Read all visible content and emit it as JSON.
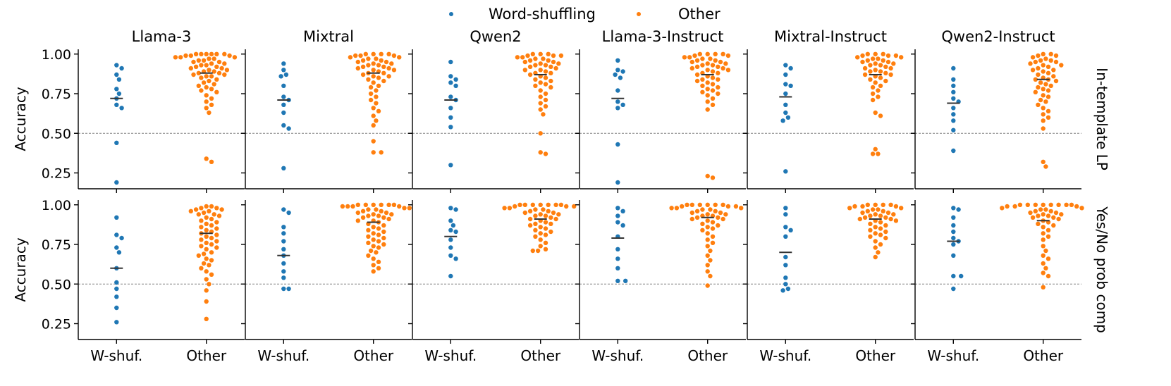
{
  "chart_data": {
    "type": "scatter",
    "subtype": "swarm",
    "legend": {
      "placement": "top-center",
      "entries": [
        {
          "name": "Word-shuffling",
          "color": "#1f77b4"
        },
        {
          "name": "Other",
          "color": "#ff7f0e"
        }
      ]
    },
    "categories": [
      "W-shuf.",
      "Other"
    ],
    "ylabel": "Accuracy",
    "ylim": [
      0.15,
      1.03
    ],
    "yticks": [
      "0.25",
      "0.50",
      "0.75",
      "1.00"
    ],
    "ytick_values": [
      0.25,
      0.5,
      0.75,
      1.0
    ],
    "reference_line": 0.5,
    "columns": [
      "Llama-3",
      "Mixtral",
      "Qwen2",
      "Llama-3-Instruct",
      "Mixtral-Instruct",
      "Qwen2-Instruct"
    ],
    "rows": [
      "In-template LP",
      "Yes/No prob comp"
    ],
    "panels": [
      {
        "row": 0,
        "col": 0,
        "median": [
          0.72,
          0.88
        ],
        "wshuf": [
          0.93,
          0.91,
          0.87,
          0.84,
          0.78,
          0.75,
          0.72,
          0.68,
          0.66,
          0.44,
          0.19
        ],
        "other": [
          1.0,
          1.0,
          1.0,
          1.0,
          1.0,
          1.0,
          0.99,
          0.99,
          0.99,
          0.98,
          0.98,
          0.98,
          0.97,
          0.97,
          0.96,
          0.96,
          0.95,
          0.95,
          0.94,
          0.94,
          0.93,
          0.93,
          0.92,
          0.92,
          0.91,
          0.91,
          0.9,
          0.9,
          0.89,
          0.89,
          0.88,
          0.88,
          0.87,
          0.87,
          0.86,
          0.86,
          0.85,
          0.84,
          0.83,
          0.82,
          0.81,
          0.8,
          0.79,
          0.78,
          0.77,
          0.76,
          0.74,
          0.72,
          0.7,
          0.68,
          0.66,
          0.63,
          0.34,
          0.32
        ]
      },
      {
        "row": 0,
        "col": 1,
        "median": [
          0.71,
          0.88
        ],
        "wshuf": [
          0.94,
          0.9,
          0.87,
          0.86,
          0.8,
          0.73,
          0.71,
          0.68,
          0.63,
          0.55,
          0.53,
          0.28
        ],
        "other": [
          1.0,
          1.0,
          1.0,
          1.0,
          0.99,
          0.99,
          0.99,
          0.98,
          0.98,
          0.97,
          0.97,
          0.96,
          0.96,
          0.95,
          0.95,
          0.94,
          0.94,
          0.93,
          0.93,
          0.92,
          0.92,
          0.91,
          0.91,
          0.9,
          0.9,
          0.89,
          0.88,
          0.88,
          0.87,
          0.86,
          0.86,
          0.85,
          0.84,
          0.83,
          0.82,
          0.8,
          0.79,
          0.77,
          0.75,
          0.73,
          0.71,
          0.69,
          0.66,
          0.64,
          0.61,
          0.58,
          0.55,
          0.45,
          0.38,
          0.38
        ]
      },
      {
        "row": 0,
        "col": 2,
        "median": [
          0.71,
          0.87
        ],
        "wshuf": [
          0.95,
          0.86,
          0.84,
          0.82,
          0.8,
          0.73,
          0.71,
          0.66,
          0.6,
          0.54,
          0.3
        ],
        "other": [
          1.0,
          1.0,
          1.0,
          0.99,
          0.99,
          0.99,
          0.98,
          0.98,
          0.97,
          0.97,
          0.96,
          0.96,
          0.95,
          0.95,
          0.94,
          0.94,
          0.93,
          0.93,
          0.92,
          0.92,
          0.91,
          0.9,
          0.9,
          0.89,
          0.88,
          0.88,
          0.87,
          0.86,
          0.85,
          0.84,
          0.83,
          0.82,
          0.81,
          0.8,
          0.79,
          0.77,
          0.75,
          0.73,
          0.71,
          0.69,
          0.67,
          0.65,
          0.62,
          0.5,
          0.38,
          0.37
        ]
      },
      {
        "row": 0,
        "col": 3,
        "median": [
          0.72,
          0.87
        ],
        "wshuf": [
          0.96,
          0.9,
          0.89,
          0.87,
          0.85,
          0.77,
          0.7,
          0.68,
          0.66,
          0.43,
          0.19
        ],
        "other": [
          1.0,
          1.0,
          1.0,
          1.0,
          0.99,
          0.99,
          0.98,
          0.98,
          0.97,
          0.97,
          0.96,
          0.96,
          0.95,
          0.95,
          0.94,
          0.94,
          0.93,
          0.93,
          0.92,
          0.92,
          0.91,
          0.91,
          0.9,
          0.9,
          0.89,
          0.88,
          0.88,
          0.87,
          0.86,
          0.85,
          0.84,
          0.84,
          0.83,
          0.82,
          0.81,
          0.8,
          0.79,
          0.78,
          0.77,
          0.76,
          0.75,
          0.74,
          0.72,
          0.7,
          0.68,
          0.65,
          0.23,
          0.22
        ]
      },
      {
        "row": 0,
        "col": 4,
        "median": [
          0.73,
          0.87
        ],
        "wshuf": [
          0.93,
          0.91,
          0.87,
          0.81,
          0.8,
          0.75,
          0.68,
          0.63,
          0.6,
          0.58,
          0.26
        ],
        "other": [
          1.0,
          1.0,
          1.0,
          0.99,
          0.99,
          0.99,
          0.98,
          0.98,
          0.97,
          0.97,
          0.96,
          0.96,
          0.95,
          0.95,
          0.94,
          0.94,
          0.93,
          0.93,
          0.92,
          0.91,
          0.91,
          0.9,
          0.89,
          0.89,
          0.88,
          0.87,
          0.87,
          0.86,
          0.85,
          0.84,
          0.83,
          0.82,
          0.8,
          0.79,
          0.77,
          0.75,
          0.73,
          0.71,
          0.63,
          0.61,
          0.4,
          0.37,
          0.37
        ]
      },
      {
        "row": 0,
        "col": 5,
        "median": [
          0.69,
          0.84
        ],
        "wshuf": [
          0.91,
          0.84,
          0.8,
          0.76,
          0.72,
          0.7,
          0.66,
          0.62,
          0.58,
          0.52,
          0.39
        ],
        "other": [
          1.0,
          1.0,
          0.99,
          0.99,
          0.98,
          0.97,
          0.96,
          0.96,
          0.95,
          0.95,
          0.94,
          0.93,
          0.93,
          0.92,
          0.91,
          0.9,
          0.9,
          0.89,
          0.88,
          0.87,
          0.86,
          0.85,
          0.84,
          0.84,
          0.83,
          0.82,
          0.81,
          0.8,
          0.79,
          0.78,
          0.77,
          0.76,
          0.74,
          0.73,
          0.71,
          0.7,
          0.68,
          0.66,
          0.64,
          0.62,
          0.6,
          0.58,
          0.53,
          0.32,
          0.29
        ]
      },
      {
        "row": 1,
        "col": 0,
        "median": [
          0.6,
          0.82
        ],
        "wshuf": [
          0.92,
          0.81,
          0.79,
          0.73,
          0.7,
          0.6,
          0.51,
          0.47,
          0.42,
          0.35,
          0.26
        ],
        "other": [
          0.99,
          0.99,
          0.98,
          0.98,
          0.97,
          0.97,
          0.96,
          0.96,
          0.95,
          0.94,
          0.94,
          0.93,
          0.92,
          0.91,
          0.9,
          0.89,
          0.88,
          0.87,
          0.86,
          0.85,
          0.84,
          0.83,
          0.82,
          0.81,
          0.8,
          0.79,
          0.78,
          0.77,
          0.76,
          0.75,
          0.74,
          0.73,
          0.72,
          0.7,
          0.69,
          0.68,
          0.66,
          0.65,
          0.63,
          0.62,
          0.6,
          0.58,
          0.56,
          0.53,
          0.5,
          0.46,
          0.39,
          0.28
        ]
      },
      {
        "row": 1,
        "col": 1,
        "median": [
          0.68,
          0.89
        ],
        "wshuf": [
          0.97,
          0.95,
          0.86,
          0.82,
          0.77,
          0.72,
          0.68,
          0.63,
          0.58,
          0.54,
          0.47,
          0.47
        ],
        "other": [
          1.0,
          1.0,
          1.0,
          1.0,
          1.0,
          1.0,
          0.99,
          0.99,
          0.99,
          0.99,
          0.98,
          0.98,
          0.97,
          0.97,
          0.96,
          0.96,
          0.95,
          0.95,
          0.94,
          0.94,
          0.93,
          0.93,
          0.92,
          0.92,
          0.91,
          0.9,
          0.9,
          0.89,
          0.88,
          0.87,
          0.86,
          0.85,
          0.84,
          0.83,
          0.82,
          0.81,
          0.8,
          0.79,
          0.78,
          0.77,
          0.76,
          0.75,
          0.74,
          0.73,
          0.71,
          0.7,
          0.68,
          0.66,
          0.64,
          0.62,
          0.6,
          0.58
        ]
      },
      {
        "row": 1,
        "col": 2,
        "median": [
          0.8,
          0.91
        ],
        "wshuf": [
          0.98,
          0.97,
          0.9,
          0.87,
          0.84,
          0.83,
          0.78,
          0.73,
          0.68,
          0.66,
          0.55
        ],
        "other": [
          1.0,
          1.0,
          1.0,
          1.0,
          1.0,
          1.0,
          1.0,
          0.99,
          0.99,
          0.99,
          0.98,
          0.98,
          0.97,
          0.97,
          0.96,
          0.96,
          0.95,
          0.95,
          0.94,
          0.94,
          0.93,
          0.93,
          0.92,
          0.91,
          0.91,
          0.9,
          0.89,
          0.88,
          0.88,
          0.87,
          0.86,
          0.85,
          0.84,
          0.83,
          0.82,
          0.81,
          0.8,
          0.78,
          0.76,
          0.74,
          0.72,
          0.71,
          0.71
        ]
      },
      {
        "row": 1,
        "col": 3,
        "median": [
          0.79,
          0.92
        ],
        "wshuf": [
          0.98,
          0.96,
          0.93,
          0.89,
          0.87,
          0.8,
          0.72,
          0.66,
          0.6,
          0.52,
          0.52
        ],
        "other": [
          1.0,
          1.0,
          1.0,
          1.0,
          1.0,
          1.0,
          0.99,
          0.99,
          0.99,
          0.98,
          0.98,
          0.98,
          0.97,
          0.97,
          0.96,
          0.96,
          0.95,
          0.95,
          0.94,
          0.94,
          0.93,
          0.93,
          0.92,
          0.92,
          0.91,
          0.91,
          0.9,
          0.89,
          0.88,
          0.87,
          0.86,
          0.85,
          0.84,
          0.82,
          0.8,
          0.78,
          0.76,
          0.74,
          0.71,
          0.68,
          0.65,
          0.62,
          0.58,
          0.55,
          0.49
        ]
      },
      {
        "row": 1,
        "col": 4,
        "median": [
          0.7,
          0.91
        ],
        "wshuf": [
          0.98,
          0.94,
          0.86,
          0.84,
          0.8,
          0.67,
          0.62,
          0.54,
          0.5,
          0.47,
          0.46
        ],
        "other": [
          1.0,
          1.0,
          1.0,
          1.0,
          0.99,
          0.99,
          0.99,
          0.98,
          0.98,
          0.97,
          0.97,
          0.96,
          0.96,
          0.95,
          0.95,
          0.94,
          0.94,
          0.93,
          0.93,
          0.92,
          0.92,
          0.91,
          0.91,
          0.9,
          0.9,
          0.89,
          0.88,
          0.87,
          0.86,
          0.85,
          0.84,
          0.83,
          0.82,
          0.81,
          0.8,
          0.79,
          0.77,
          0.75,
          0.73,
          0.7,
          0.67
        ]
      },
      {
        "row": 1,
        "col": 5,
        "median": [
          0.77,
          0.9
        ],
        "wshuf": [
          0.98,
          0.97,
          0.92,
          0.87,
          0.83,
          0.79,
          0.77,
          0.75,
          0.68,
          0.55,
          0.55,
          0.47
        ],
        "other": [
          1.0,
          1.0,
          1.0,
          1.0,
          1.0,
          1.0,
          1.0,
          1.0,
          0.99,
          0.99,
          0.99,
          0.98,
          0.98,
          0.97,
          0.97,
          0.96,
          0.96,
          0.95,
          0.95,
          0.94,
          0.94,
          0.93,
          0.93,
          0.92,
          0.92,
          0.91,
          0.9,
          0.89,
          0.88,
          0.87,
          0.86,
          0.84,
          0.82,
          0.8,
          0.78,
          0.74,
          0.71,
          0.68,
          0.66,
          0.63,
          0.6,
          0.57,
          0.55,
          0.48
        ]
      }
    ]
  }
}
